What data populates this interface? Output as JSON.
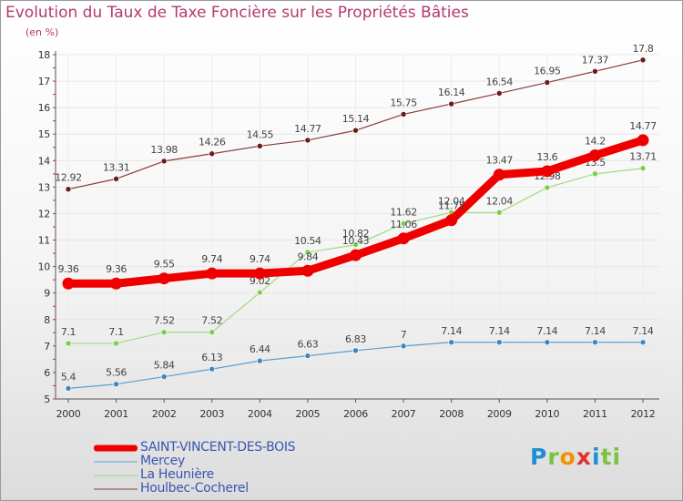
{
  "chart_data": {
    "type": "line",
    "title": "Evolution du Taux de Taxe Foncière sur les Propriétés Bâties",
    "ylabel": "(en %)",
    "xlabel": "",
    "categories": [
      "2000",
      "2001",
      "2002",
      "2003",
      "2004",
      "2005",
      "2006",
      "2007",
      "2008",
      "2009",
      "2010",
      "2011",
      "2012"
    ],
    "yticks": [
      "5",
      "6",
      "7",
      "8",
      "9",
      "10",
      "11",
      "12",
      "13",
      "14",
      "15",
      "16",
      "17",
      "18"
    ],
    "ylim": [
      5,
      18
    ],
    "grid": true,
    "series": [
      {
        "name": "Houlbec-Cocherel",
        "color": "#8b3a3a",
        "marker_color": "#6b1a1a",
        "width": 1.2,
        "values": [
          12.92,
          13.31,
          13.98,
          14.26,
          14.55,
          14.77,
          15.14,
          15.75,
          16.14,
          16.54,
          16.95,
          17.37,
          17.8
        ],
        "labels": [
          "12.92",
          "13.31",
          "13.98",
          "14.26",
          "14.55",
          "14.77",
          "15.14",
          "15.75",
          "16.14",
          "16.54",
          "16.95",
          "17.37",
          "17.8"
        ]
      },
      {
        "name": "La Heunière",
        "color": "#9fdc7e",
        "marker_color": "#7ccf48",
        "width": 1.2,
        "values": [
          7.1,
          7.1,
          7.52,
          7.52,
          9.02,
          10.54,
          10.82,
          11.62,
          12.04,
          12.04,
          12.98,
          13.5,
          13.71
        ],
        "labels": [
          "7.1",
          "7.1",
          "7.52",
          "7.52",
          "9.02",
          "10.54",
          "10.82",
          "11.62",
          "12.04",
          "12.04",
          "12.98",
          "13.5",
          "13.71"
        ]
      },
      {
        "name": "Mercey",
        "color": "#5a9fd2",
        "marker_color": "#3f86bf",
        "width": 1.2,
        "values": [
          5.4,
          5.56,
          5.84,
          6.13,
          6.44,
          6.63,
          6.83,
          7.0,
          7.14,
          7.14,
          7.14,
          7.14,
          7.14
        ],
        "labels": [
          "5.4",
          "5.56",
          "5.84",
          "6.13",
          "6.44",
          "6.63",
          "6.83",
          "7",
          "7.14",
          "7.14",
          "7.14",
          "7.14",
          "7.14"
        ]
      },
      {
        "name": "SAINT-VINCENT-DES-BOIS",
        "color": "#ee0000",
        "marker_color": "#ee0000",
        "width": 9,
        "values": [
          9.36,
          9.36,
          9.55,
          9.74,
          9.74,
          9.84,
          10.43,
          11.06,
          11.75,
          13.47,
          13.6,
          14.2,
          14.77
        ],
        "labels": [
          "9.36",
          "9.36",
          "9.55",
          "9.74",
          "9.74",
          "9.84",
          "10.43",
          "11.06",
          "11.75",
          "13.47",
          "13.6",
          "14.2",
          "14.77"
        ]
      }
    ],
    "legend": [
      "SAINT-VINCENT-DES-BOIS",
      "Mercey",
      "La Heunière",
      "Houlbec-Cocherel"
    ],
    "legend_position": "bottom-left"
  },
  "legend_items": [
    {
      "label": "SAINT-VINCENT-DES-BOIS",
      "color": "#ee0000",
      "thickness": 7
    },
    {
      "label": "Mercey",
      "color": "#5a9fd2",
      "thickness": 1
    },
    {
      "label": "La Heunière",
      "color": "#9fdc7e",
      "thickness": 1
    },
    {
      "label": "Houlbec-Cocherel",
      "color": "#8b3a3a",
      "thickness": 1
    }
  ],
  "branding": {
    "logo_letters": [
      "P",
      "r",
      "o",
      "x",
      "i",
      "ti"
    ]
  }
}
